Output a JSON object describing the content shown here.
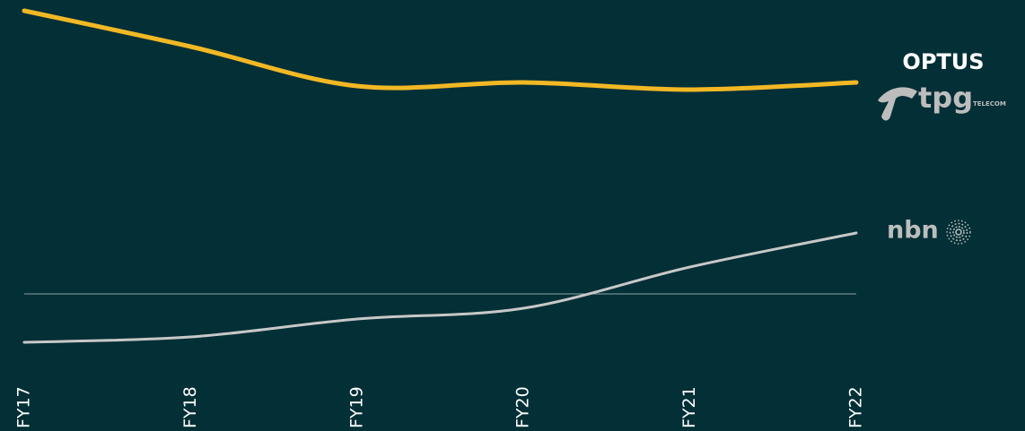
{
  "chart_data": {
    "type": "line",
    "categories": [
      "FY17",
      "FY18",
      "FY19",
      "FY20",
      "FY21",
      "FY22"
    ],
    "series": [
      {
        "name": "OPTUS",
        "extra_labels": [
          "tpg",
          "TELECOM"
        ],
        "color": "#f2b824",
        "values": [
          97,
          87,
          76,
          77,
          75,
          77
        ]
      },
      {
        "name": "nbn",
        "color": "#c8c8c8",
        "values": [
          4.5,
          6,
          11,
          14,
          25.5,
          35
        ]
      }
    ],
    "ylim": [
      0,
      100
    ],
    "reference_line": 18,
    "background": "#032f36"
  }
}
